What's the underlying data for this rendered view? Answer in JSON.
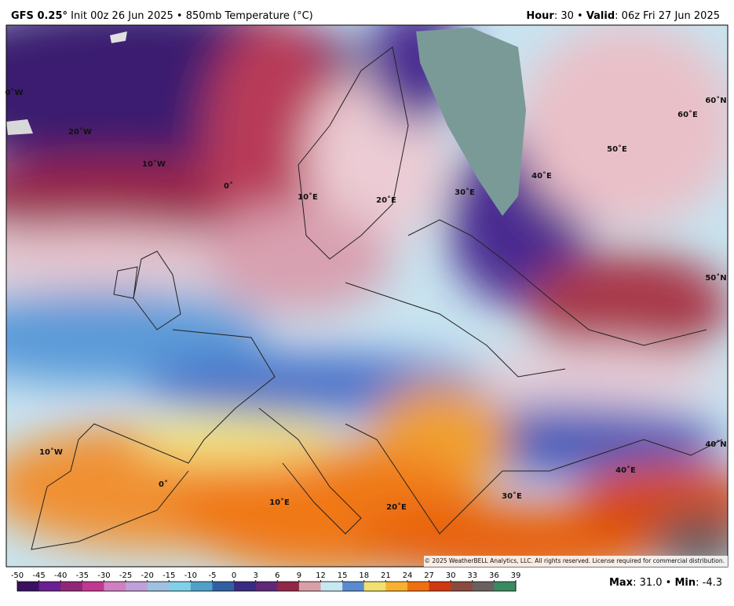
{
  "header": {
    "left": [
      {
        "text": "GFS 0.25°",
        "bold": true
      },
      {
        "text": " Init 00z 26 Jun 2025 • 850mb Temperature (°C)",
        "bold": false
      }
    ],
    "right": [
      {
        "text": "Hour",
        "bold": true
      },
      {
        "text": ": 30 • ",
        "bold": false
      },
      {
        "text": "Valid",
        "bold": true
      },
      {
        "text": ": 06z Fri 27 Jun 2025",
        "bold": false
      }
    ]
  },
  "map": {
    "labels": [
      "0˚W",
      "20˚W",
      "10˚W",
      "0˚",
      "10˚E",
      "20˚E",
      "30˚E",
      "40˚E",
      "50˚E",
      "60˚E",
      "60˚N",
      "50˚N",
      "40˚N",
      "10˚W",
      "0˚",
      "10˚E",
      "20˚E",
      "30˚E",
      "40˚E"
    ],
    "copyright": "© 2025 WeatherBELL Analytics, LLC. All rights reserved. License required for commercial distribution."
  },
  "colorbar": {
    "ticks": [
      -50,
      -45,
      -40,
      -35,
      -30,
      -25,
      -20,
      -15,
      -10,
      -5,
      0,
      3,
      6,
      9,
      12,
      15,
      18,
      21,
      24,
      27,
      30,
      33,
      36,
      39
    ],
    "colors": [
      "#3a1060",
      "#6a2090",
      "#902878",
      "#c03890",
      "#d080c0",
      "#c0a0d8",
      "#a0c0e0",
      "#80d0e8",
      "#50a0c8",
      "#3060a0",
      "#3a2a80",
      "#602878",
      "#902848",
      "#d8a0a8",
      "#c8e8f0",
      "#5a8ad0",
      "#f0e070",
      "#f8b030",
      "#f07010",
      "#d03810",
      "#8a4a40",
      "#6a6060",
      "#3a8a60"
    ]
  },
  "stats": [
    {
      "text": "Max",
      "bold": true
    },
    {
      "text": ": 31.0 • ",
      "bold": false
    },
    {
      "text": "Min",
      "bold": true
    },
    {
      "text": ": -4.3",
      "bold": false
    }
  ]
}
